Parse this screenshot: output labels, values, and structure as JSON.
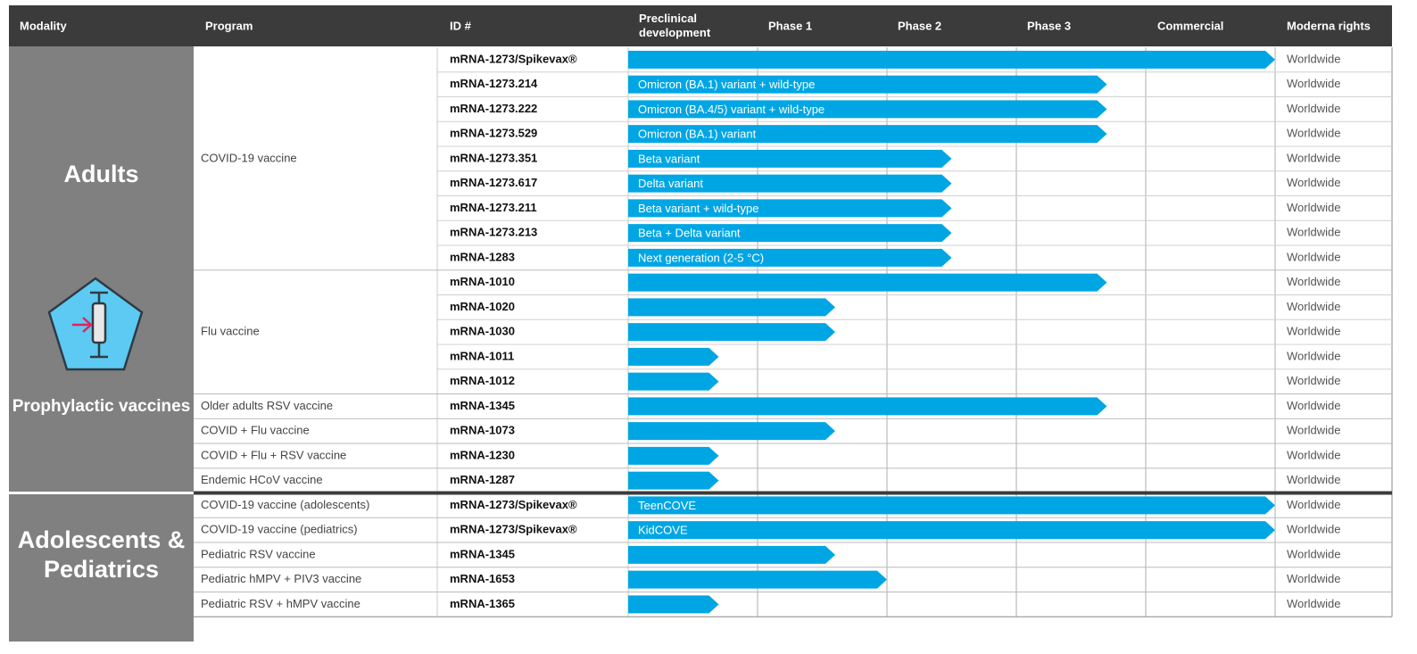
{
  "header": {
    "columns": [
      "Modality",
      "Program",
      "ID #",
      "Preclinical development",
      "Phase 1",
      "Phase 2",
      "Phase 3",
      "Commercial",
      "Moderna rights"
    ]
  },
  "modalities": [
    {
      "name": "Adults",
      "subtitle": "Prophylactic vaccines",
      "programs": [
        {
          "name": "COVID-19 vaccine",
          "candidates": [
            {
              "id": "mRNA-1273/Spikevax®",
              "label": null,
              "stage": 5.0,
              "rights": "Worldwide"
            },
            {
              "id": "mRNA-1273.214",
              "label": "Omicron (BA.1) variant + wild-type",
              "stage": 3.7,
              "rights": "Worldwide"
            },
            {
              "id": "mRNA-1273.222",
              "label": "Omicron (BA.4/5) variant + wild-type",
              "stage": 3.7,
              "rights": "Worldwide"
            },
            {
              "id": "mRNA-1273.529",
              "label": "Omicron (BA.1) variant",
              "stage": 3.7,
              "rights": "Worldwide"
            },
            {
              "id": "mRNA-1273.351",
              "label": "Beta variant",
              "stage": 2.5,
              "rights": "Worldwide"
            },
            {
              "id": "mRNA-1273.617",
              "label": "Delta variant",
              "stage": 2.5,
              "rights": "Worldwide"
            },
            {
              "id": "mRNA-1273.211",
              "label": "Beta variant + wild-type",
              "stage": 2.5,
              "rights": "Worldwide"
            },
            {
              "id": "mRNA-1273.213",
              "label": "Beta + Delta variant",
              "stage": 2.5,
              "rights": "Worldwide"
            },
            {
              "id": "mRNA-1283",
              "label": "Next generation (2-5 °C)",
              "stage": 2.5,
              "rights": "Worldwide"
            }
          ]
        },
        {
          "name": "Flu vaccine",
          "candidates": [
            {
              "id": "mRNA-1010",
              "label": null,
              "stage": 3.7,
              "rights": "Worldwide"
            },
            {
              "id": "mRNA-1020",
              "label": null,
              "stage": 1.6,
              "rights": "Worldwide"
            },
            {
              "id": "mRNA-1030",
              "label": null,
              "stage": 1.6,
              "rights": "Worldwide"
            },
            {
              "id": "mRNA-1011",
              "label": null,
              "stage": 0.7,
              "rights": "Worldwide"
            },
            {
              "id": "mRNA-1012",
              "label": null,
              "stage": 0.7,
              "rights": "Worldwide"
            }
          ]
        },
        {
          "name": "Older adults RSV vaccine",
          "candidates": [
            {
              "id": "mRNA-1345",
              "label": null,
              "stage": 3.7,
              "rights": "Worldwide"
            }
          ]
        },
        {
          "name": "COVID + Flu vaccine",
          "candidates": [
            {
              "id": "mRNA-1073",
              "label": null,
              "stage": 1.6,
              "rights": "Worldwide"
            }
          ]
        },
        {
          "name": "COVID + Flu + RSV vaccine",
          "candidates": [
            {
              "id": "mRNA-1230",
              "label": null,
              "stage": 0.7,
              "rights": "Worldwide"
            }
          ]
        },
        {
          "name": "Endemic HCoV vaccine",
          "candidates": [
            {
              "id": "mRNA-1287",
              "label": null,
              "stage": 0.7,
              "rights": "Worldwide"
            }
          ]
        }
      ]
    },
    {
      "name": "Adolescents & Pediatrics",
      "subtitle": null,
      "programs": [
        {
          "name": "COVID-19 vaccine (adolescents)",
          "candidates": [
            {
              "id": "mRNA-1273/Spikevax®",
              "label": "TeenCOVE",
              "stage": 5.0,
              "rights": "Worldwide"
            }
          ]
        },
        {
          "name": "COVID-19 vaccine (pediatrics)",
          "candidates": [
            {
              "id": "mRNA-1273/Spikevax®",
              "label": "KidCOVE",
              "stage": 5.0,
              "rights": "Worldwide"
            }
          ]
        },
        {
          "name": "Pediatric RSV vaccine",
          "candidates": [
            {
              "id": "mRNA-1345",
              "label": null,
              "stage": 1.6,
              "rights": "Worldwide"
            }
          ]
        },
        {
          "name": "Pediatric hMPV + PIV3 vaccine",
          "candidates": [
            {
              "id": "mRNA-1653",
              "label": null,
              "stage": 2.0,
              "rights": "Worldwide"
            }
          ]
        },
        {
          "name": "Pediatric RSV + hMPV vaccine",
          "candidates": [
            {
              "id": "mRNA-1365",
              "label": null,
              "stage": 0.7,
              "rights": "Worldwide"
            }
          ]
        }
      ]
    }
  ]
}
